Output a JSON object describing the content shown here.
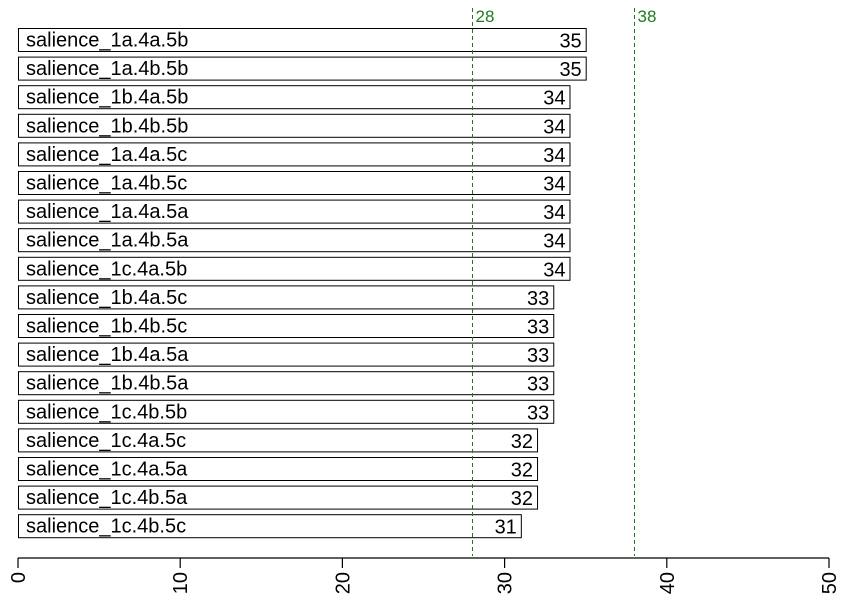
{
  "chart_data": {
    "type": "bar",
    "orientation": "horizontal",
    "categories": [
      "salience_1a.4a.5b",
      "salience_1a.4b.5b",
      "salience_1b.4a.5b",
      "salience_1b.4b.5b",
      "salience_1a.4a.5c",
      "salience_1a.4b.5c",
      "salience_1a.4a.5a",
      "salience_1a.4b.5a",
      "salience_1c.4a.5b",
      "salience_1b.4a.5c",
      "salience_1b.4b.5c",
      "salience_1b.4a.5a",
      "salience_1b.4b.5a",
      "salience_1c.4b.5b",
      "salience_1c.4a.5c",
      "salience_1c.4a.5a",
      "salience_1c.4b.5a",
      "salience_1c.4b.5c"
    ],
    "values": [
      35,
      35,
      34,
      34,
      34,
      34,
      34,
      34,
      34,
      33,
      33,
      33,
      33,
      33,
      32,
      32,
      32,
      31
    ],
    "value_labels": [
      "35",
      "35",
      "34",
      "34",
      "34",
      "34",
      "34",
      "34",
      "34",
      "33",
      "33",
      "33",
      "33",
      "33",
      "32",
      "32",
      "32",
      "31"
    ],
    "reference_lines": [
      {
        "value": 28,
        "label": "28"
      },
      {
        "value": 38,
        "label": "38"
      }
    ],
    "xlim": [
      0,
      50
    ],
    "x_ticks": [
      0,
      10,
      20,
      30,
      40,
      50
    ],
    "x_tick_labels": [
      "0",
      "10",
      "20",
      "30",
      "40",
      "50"
    ],
    "title": "",
    "xlabel": "",
    "ylabel": "",
    "grid": false,
    "colors": {
      "bar_fill": "#ffffff",
      "bar_stroke": "#000000",
      "reference_line": "#1f7a1f",
      "axis": "#000000"
    }
  }
}
